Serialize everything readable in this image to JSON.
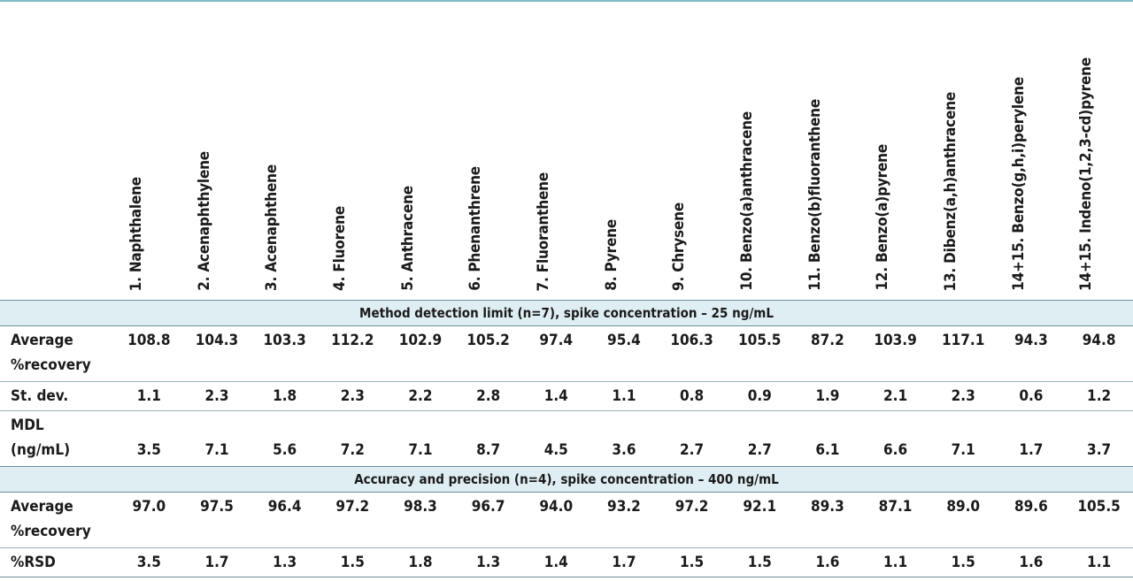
{
  "columns": [
    "1. Naphthalene",
    "2. Acenaphthylene",
    "3. Acenaphthene",
    "4. Fluorene",
    "5. Anthracene",
    "6. Phenanthrene",
    "7. Fluoranthene",
    "8. Pyrene",
    "9. Chrysene",
    "10. Benzo(a)anthracene",
    "11. Benzo(b)fluoranthene",
    "12. Benzo(a)pyrene",
    "13. Dibenz(a,h)anthracene",
    "14+15. Benzo(g,h,i)perylene",
    "14+15. Indeno(1,2,3-cd)pyrene"
  ],
  "sections": [
    {
      "title": "Method detection limit (n=7), spike concentration – 25 ng/mL",
      "rows": [
        {
          "label_line1": "Average",
          "label_line2": "%recovery",
          "values_on": "top",
          "values": [
            "108.8",
            "104.3",
            "103.3",
            "112.2",
            "102.9",
            "105.2",
            "97.4",
            "95.4",
            "106.3",
            "105.5",
            "87.2",
            "103.9",
            "117.1",
            "94.3",
            "94.8"
          ]
        },
        {
          "label_line1": "St. dev.",
          "label_line2": "",
          "values_on": "single",
          "values": [
            "1.1",
            "2.3",
            "1.8",
            "2.3",
            "2.2",
            "2.8",
            "1.4",
            "1.1",
            "0.8",
            "0.9",
            "1.9",
            "2.1",
            "2.3",
            "0.6",
            "1.2"
          ]
        },
        {
          "label_line1": "MDL",
          "label_line2": "(ng/mL)",
          "values_on": "bottom",
          "values": [
            "3.5",
            "7.1",
            "5.6",
            "7.2",
            "7.1",
            "8.7",
            "4.5",
            "3.6",
            "2.7",
            "2.7",
            "6.1",
            "6.6",
            "7.1",
            "1.7",
            "3.7"
          ]
        }
      ]
    },
    {
      "title": "Accuracy and precision (n=4), spike concentration – 400 ng/mL",
      "rows": [
        {
          "label_line1": "Average",
          "label_line2": "%recovery",
          "values_on": "top",
          "values": [
            "97.0",
            "97.5",
            "96.4",
            "97.2",
            "98.3",
            "96.7",
            "94.0",
            "93.2",
            "97.2",
            "92.1",
            "89.3",
            "87.1",
            "89.0",
            "89.6",
            "105.5"
          ]
        },
        {
          "label_line1": "%RSD",
          "label_line2": "",
          "values_on": "single",
          "values": [
            "3.5",
            "1.7",
            "1.3",
            "1.5",
            "1.8",
            "1.3",
            "1.4",
            "1.7",
            "1.5",
            "1.5",
            "1.6",
            "1.1",
            "1.5",
            "1.6",
            "1.1"
          ]
        }
      ]
    }
  ]
}
